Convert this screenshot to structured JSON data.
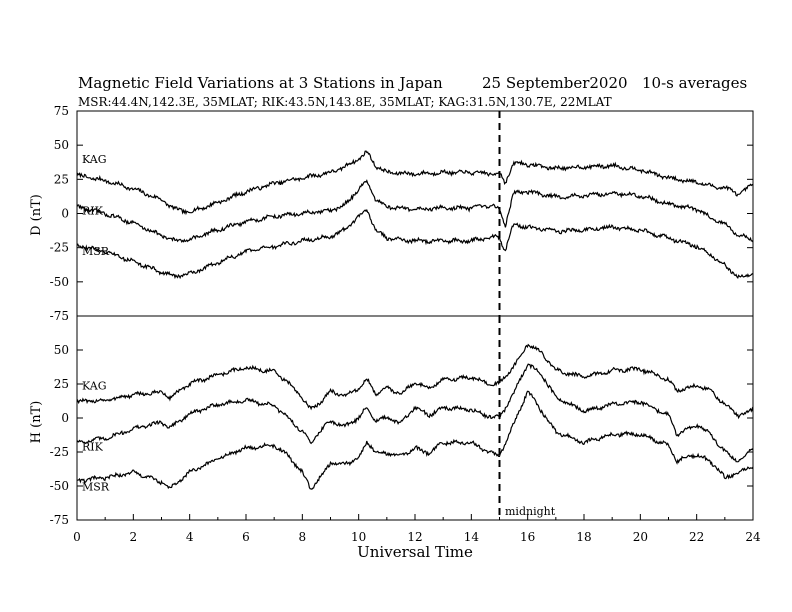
{
  "header": {
    "title": "Magnetic Field Variations at 3 Stations in Japan",
    "date": "25 September2020",
    "averages": "10-s averages",
    "stations_line": "MSR:44.4N,142.3E, 35MLAT;  RIK:43.5N,143.8E, 35MLAT;  KAG:31.5N,130.7E, 22MLAT"
  },
  "chart_data": [
    {
      "type": "line",
      "panel": "D",
      "ylabel": "D (nT)",
      "ylim": [
        -75,
        75
      ],
      "yticks": [
        "75",
        "50",
        "25",
        "0",
        "-25",
        "-50",
        "-75"
      ],
      "xlim": [
        0,
        24
      ],
      "series": [
        {
          "name": "KAG",
          "x": [
            0,
            1,
            2,
            3,
            3.5,
            4,
            5,
            6,
            7,
            8,
            9,
            9.5,
            10,
            10.3,
            10.6,
            11,
            12,
            13,
            14,
            14.8,
            15,
            15.2,
            15.5,
            16,
            17,
            18,
            19,
            20,
            21,
            22,
            22.5,
            23,
            23.5,
            24
          ],
          "y": [
            28,
            24,
            18,
            10,
            3,
            1,
            8,
            16,
            22,
            26,
            30,
            34,
            40,
            45,
            35,
            30,
            29,
            30,
            30,
            29,
            30,
            22,
            37,
            36,
            33,
            34,
            35,
            32,
            26,
            23,
            20,
            19,
            14,
            21
          ]
        },
        {
          "name": "RIK",
          "x": [
            0,
            1,
            2,
            3,
            3.5,
            4,
            5,
            6,
            7,
            8,
            9,
            9.5,
            10,
            10.3,
            10.6,
            11,
            12,
            13,
            14,
            14.8,
            15,
            15.2,
            15.5,
            16,
            17,
            18,
            19,
            20,
            21,
            22,
            22.5,
            23,
            23.5,
            24
          ],
          "y": [
            5,
            0,
            -7,
            -16,
            -20,
            -19,
            -12,
            -6,
            -2,
            0,
            2,
            6,
            18,
            23,
            10,
            5,
            3,
            4,
            4,
            6,
            2,
            -9,
            15,
            16,
            12,
            13,
            15,
            13,
            7,
            3,
            -3,
            -8,
            -16,
            -19
          ]
        },
        {
          "name": "MSR",
          "x": [
            0,
            1,
            2,
            3,
            3.5,
            4,
            5,
            6,
            7,
            8,
            9,
            9.5,
            10,
            10.3,
            10.6,
            11,
            12,
            13,
            14,
            14.8,
            15,
            15.2,
            15.5,
            16,
            17,
            18,
            19,
            20,
            21,
            22,
            22.5,
            23,
            23.5,
            24
          ],
          "y": [
            -23,
            -28,
            -35,
            -43,
            -46,
            -44,
            -36,
            -28,
            -24,
            -20,
            -17,
            -12,
            -2,
            3,
            -12,
            -18,
            -20,
            -20,
            -20,
            -17,
            -18,
            -27,
            -8,
            -10,
            -13,
            -12,
            -10,
            -12,
            -18,
            -24,
            -30,
            -38,
            -47,
            -44
          ]
        }
      ]
    },
    {
      "type": "line",
      "panel": "H",
      "ylabel": "H (nT)",
      "ylim": [
        -75,
        75
      ],
      "yticks": [
        "50",
        "25",
        "0",
        "-25",
        "-50",
        "-75"
      ],
      "xlabel": "Universal Time",
      "xlim": [
        0,
        24
      ],
      "xticks": [
        "0",
        "2",
        "4",
        "6",
        "8",
        "10",
        "12",
        "14",
        "16",
        "18",
        "20",
        "22",
        "24"
      ],
      "series": [
        {
          "name": "KAG",
          "x": [
            0,
            1,
            2,
            3,
            3.3,
            4,
            5,
            6,
            7,
            7.5,
            8,
            8.3,
            8.7,
            9,
            9.5,
            10,
            10.3,
            10.6,
            11,
            11.5,
            12,
            12.5,
            13,
            14,
            14.5,
            15,
            15.5,
            16,
            16.5,
            17,
            18,
            19,
            20,
            21,
            21.3,
            21.7,
            22,
            22.5,
            23,
            23.5,
            24
          ],
          "y": [
            12,
            13,
            17,
            19,
            15,
            25,
            32,
            37,
            34,
            26,
            15,
            6,
            13,
            20,
            16,
            22,
            28,
            18,
            22,
            18,
            26,
            22,
            28,
            30,
            26,
            25,
            38,
            54,
            48,
            35,
            30,
            35,
            36,
            28,
            20,
            22,
            24,
            20,
            10,
            2,
            6
          ]
        },
        {
          "name": "RIK",
          "x": [
            0,
            1,
            2,
            3,
            3.3,
            4,
            5,
            6,
            7,
            7.5,
            8,
            8.3,
            8.7,
            9,
            9.5,
            10,
            10.3,
            10.6,
            11,
            11.5,
            12,
            12.5,
            13,
            14,
            14.5,
            15,
            15.5,
            16,
            16.5,
            17,
            18,
            19,
            20,
            21,
            21.3,
            21.7,
            22,
            22.5,
            23,
            23.5,
            24
          ],
          "y": [
            -18,
            -15,
            -8,
            -3,
            -7,
            3,
            10,
            13,
            9,
            0,
            -10,
            -18,
            -8,
            -2,
            -6,
            0,
            8,
            -2,
            0,
            -4,
            8,
            2,
            8,
            6,
            2,
            0,
            18,
            40,
            32,
            15,
            5,
            10,
            12,
            2,
            -12,
            -8,
            -5,
            -12,
            -25,
            -32,
            -22
          ]
        },
        {
          "name": "MSR",
          "x": [
            0,
            1,
            2,
            3,
            3.3,
            4,
            5,
            6,
            7,
            7.5,
            8,
            8.3,
            8.7,
            9,
            9.5,
            10,
            10.3,
            10.6,
            11,
            11.5,
            12,
            12.5,
            13,
            14,
            14.5,
            15,
            15.5,
            16,
            16.5,
            17,
            18,
            19,
            20,
            21,
            21.3,
            21.7,
            22,
            22.5,
            23,
            23.5,
            24
          ],
          "y": [
            -46,
            -44,
            -40,
            -47,
            -52,
            -40,
            -30,
            -22,
            -20,
            -28,
            -40,
            -52,
            -42,
            -33,
            -34,
            -30,
            -17,
            -25,
            -26,
            -28,
            -22,
            -26,
            -18,
            -18,
            -24,
            -28,
            -5,
            20,
            5,
            -10,
            -18,
            -12,
            -12,
            -20,
            -32,
            -28,
            -27,
            -32,
            -44,
            -40,
            -35
          ]
        }
      ]
    }
  ],
  "annotation": {
    "line_at": 15,
    "label": "midnight"
  }
}
